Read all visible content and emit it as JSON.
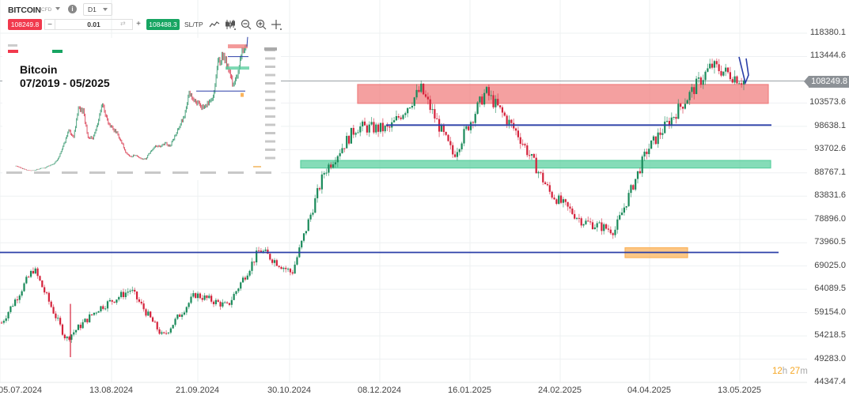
{
  "toolbar": {
    "symbol": "BITCOIN",
    "symbol_type": "CFD",
    "info_label": "i",
    "timeframe": "D1",
    "sell_price": "108249.8",
    "minus_label": "−",
    "quantity": "0.01",
    "swap_icon": "⇄",
    "plus_label": "+",
    "buy_price": "108488.3",
    "sltp_label": "SL/TP"
  },
  "inset": {
    "title_line1": "Bitcoin",
    "title_line2": "07/2019 - 05/2025"
  },
  "current_price_tag": "108249.8",
  "timer": {
    "hours": "12",
    "h": "h",
    "minutes": "27",
    "m": "m"
  },
  "colors": {
    "up": "#1a8a5a",
    "down": "#d4213a",
    "resistance_zone": "#f08080",
    "support_zone": "#5cd0a0",
    "target_zone": "#fbb45c",
    "trendline": "#2b3fa8",
    "grid": "#eef0f2"
  },
  "chart_data": {
    "type": "candlestick",
    "title": "BITCOIN CFD D1",
    "xlabel": "",
    "ylabel": "",
    "ylim": [
      44347.4,
      120000
    ],
    "grid": true,
    "y_ticks": [
      "118380.1",
      "113444.6",
      "108249.8",
      "103573.6",
      "98638.1",
      "93702.6",
      "88767.1",
      "83831.6",
      "78896.0",
      "73960.5",
      "69025.0",
      "64089.5",
      "59154.0",
      "54218.5",
      "49283.0",
      "44347.4"
    ],
    "x_ticks": [
      "05.07.2024",
      "13.08.2024",
      "21.09.2024",
      "30.10.2024",
      "08.12.2024",
      "16.01.2025",
      "24.02.2025",
      "04.04.2025",
      "13.05.2025"
    ],
    "approx_close_path": [
      {
        "date": "05.07.2024",
        "close": 57000
      },
      {
        "date": "29.07.2024",
        "close": 68500
      },
      {
        "date": "05.08.2024",
        "close": 53500
      },
      {
        "date": "13.08.2024",
        "close": 60000
      },
      {
        "date": "26.08.2024",
        "close": 64000
      },
      {
        "date": "06.09.2024",
        "close": 54000
      },
      {
        "date": "21.09.2024",
        "close": 63000
      },
      {
        "date": "10.10.2024",
        "close": 60500
      },
      {
        "date": "29.10.2024",
        "close": 72500
      },
      {
        "date": "04.11.2024",
        "close": 67500
      },
      {
        "date": "12.11.2024",
        "close": 89000
      },
      {
        "date": "22.11.2024",
        "close": 98500
      },
      {
        "date": "05.12.2024",
        "close": 98000
      },
      {
        "date": "17.12.2024",
        "close": 106500
      },
      {
        "date": "30.12.2024",
        "close": 92500
      },
      {
        "date": "20.01.2025",
        "close": 106000
      },
      {
        "date": "03.02.2025",
        "close": 97000
      },
      {
        "date": "27.02.2025",
        "close": 84500
      },
      {
        "date": "10.03.2025",
        "close": 78500
      },
      {
        "date": "07.04.2025",
        "close": 76500
      },
      {
        "date": "22.04.2025",
        "close": 93500
      },
      {
        "date": "08.05.2025",
        "close": 102500
      },
      {
        "date": "22.05.2025",
        "close": 111500
      },
      {
        "date": "26.05.2025",
        "close": 108249.8
      }
    ],
    "current_price": 108249.8,
    "annotations": [
      {
        "type": "zone",
        "label": "resistance",
        "y_from": 103500,
        "y_to": 107500,
        "color": "#f08080"
      },
      {
        "type": "zone",
        "label": "support",
        "y_from": 89800,
        "y_to": 91400,
        "color": "#5cd0a0"
      },
      {
        "type": "zone",
        "label": "target",
        "y_from": 70800,
        "y_to": 72900,
        "color": "#fbb45c"
      },
      {
        "type": "hline",
        "y": 98900,
        "color": "#2b3fa8"
      },
      {
        "type": "hline",
        "y": 71900,
        "color": "#2b3fa8"
      },
      {
        "type": "projection",
        "shape": "zigzag-up",
        "color": "#2b3fa8"
      }
    ],
    "inset": {
      "type": "line-candles",
      "range": "07/2019 - 05/2025",
      "label": "Bitcoin 07/2019 - 05/2025"
    }
  }
}
